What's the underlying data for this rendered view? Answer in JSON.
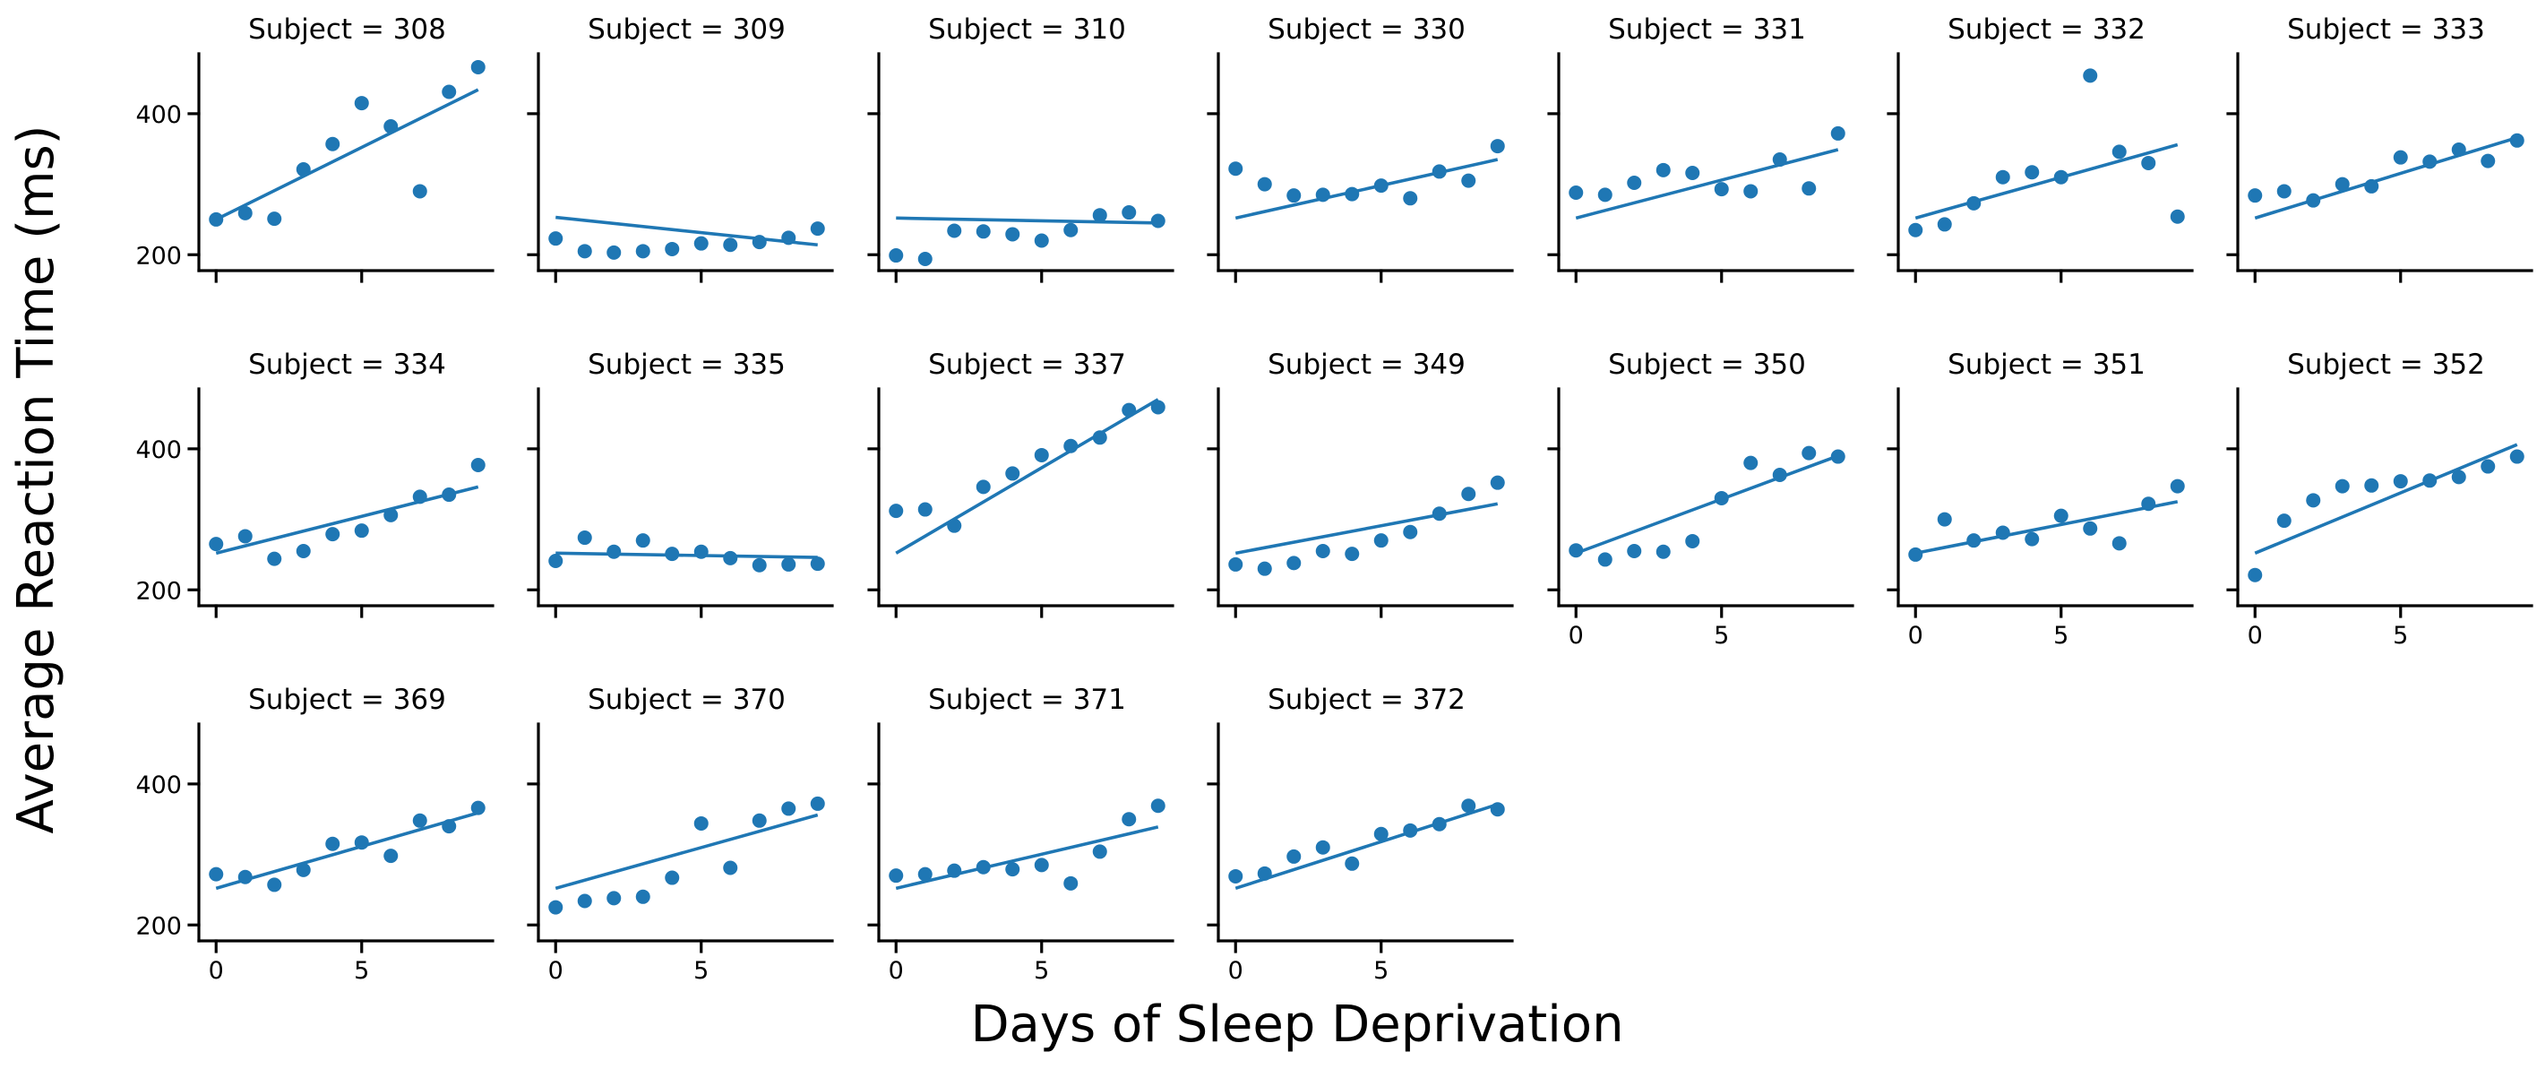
{
  "figure": {
    "xlabel": "Days of Sleep Deprivation",
    "ylabel": "Average Reaction Time (ms)",
    "title_prefix": "Subject = ",
    "colors": {
      "series": "#1f77b4",
      "axes": "#000000"
    }
  },
  "chart_data": {
    "type": "scatter",
    "layout": "facet-grid 7 columns, 3 rows, shared axes",
    "xlabel": "Days of Sleep Deprivation",
    "ylabel": "Average Reaction Time (ms)",
    "xlim": [
      -0.5,
      9.5
    ],
    "ylim": [
      180,
      485
    ],
    "x_ticks": [
      0,
      5
    ],
    "y_ticks": [
      200,
      400
    ],
    "grid": false,
    "fit": "linear regression line per panel",
    "x": [
      0,
      1,
      2,
      3,
      4,
      5,
      6,
      7,
      8,
      9
    ],
    "panels": [
      {
        "subject": "308",
        "values": [
          250,
          259,
          251,
          321,
          357,
          415,
          382,
          290,
          431,
          466
        ],
        "fit": [
          250,
          434
        ]
      },
      {
        "subject": "309",
        "values": [
          223,
          205,
          203,
          205,
          208,
          216,
          214,
          218,
          224,
          237
        ],
        "fit": [
          253,
          214
        ]
      },
      {
        "subject": "310",
        "values": [
          199,
          194,
          234,
          233,
          229,
          220,
          235,
          256,
          260,
          248
        ],
        "fit": [
          252,
          245
        ]
      },
      {
        "subject": "330",
        "values": [
          322,
          300,
          284,
          285,
          286,
          298,
          280,
          318,
          305,
          354
        ],
        "fit": [
          252,
          335
        ]
      },
      {
        "subject": "331",
        "values": [
          288,
          285,
          302,
          320,
          316,
          293,
          290,
          335,
          294,
          372
        ],
        "fit": [
          252,
          349
        ]
      },
      {
        "subject": "332",
        "values": [
          235,
          243,
          273,
          310,
          317,
          310,
          454,
          346,
          330,
          254
        ],
        "fit": [
          252,
          356
        ]
      },
      {
        "subject": "333",
        "values": [
          284,
          290,
          277,
          300,
          297,
          338,
          332,
          349,
          333,
          362
        ],
        "fit": [
          252,
          366
        ]
      },
      {
        "subject": "334",
        "values": [
          265,
          276,
          244,
          255,
          279,
          284,
          306,
          332,
          335,
          377
        ],
        "fit": [
          252,
          346
        ]
      },
      {
        "subject": "335",
        "values": [
          241,
          274,
          254,
          270,
          251,
          254,
          245,
          235,
          236,
          237
        ],
        "fit": [
          252,
          246
        ]
      },
      {
        "subject": "337",
        "values": [
          312,
          314,
          291,
          346,
          365,
          391,
          404,
          416,
          455,
          459
        ],
        "fit": [
          252,
          470
        ]
      },
      {
        "subject": "349",
        "values": [
          236,
          230,
          238,
          255,
          251,
          270,
          282,
          308,
          336,
          352
        ],
        "fit": [
          252,
          322
        ]
      },
      {
        "subject": "350",
        "values": [
          256,
          243,
          255,
          254,
          269,
          330,
          380,
          363,
          394,
          389
        ],
        "fit": [
          252,
          390
        ]
      },
      {
        "subject": "351",
        "values": [
          250,
          300,
          270,
          281,
          272,
          305,
          287,
          266,
          322,
          347
        ],
        "fit": [
          252,
          325
        ]
      },
      {
        "subject": "352",
        "values": [
          221,
          298,
          327,
          347,
          348,
          354,
          355,
          360,
          375,
          389
        ],
        "fit": [
          252,
          406
        ]
      },
      {
        "subject": "369",
        "values": [
          272,
          268,
          257,
          278,
          315,
          317,
          298,
          348,
          340,
          366
        ],
        "fit": [
          252,
          359
        ]
      },
      {
        "subject": "370",
        "values": [
          225,
          234,
          238,
          240,
          267,
          344,
          281,
          348,
          365,
          372
        ],
        "fit": [
          252,
          356
        ]
      },
      {
        "subject": "371",
        "values": [
          270,
          272,
          277,
          282,
          279,
          285,
          259,
          304,
          350,
          369
        ],
        "fit": [
          252,
          339
        ]
      },
      {
        "subject": "372",
        "values": [
          269,
          273,
          297,
          310,
          287,
          329,
          334,
          343,
          369,
          364
        ],
        "fit": [
          252,
          371
        ]
      }
    ]
  }
}
